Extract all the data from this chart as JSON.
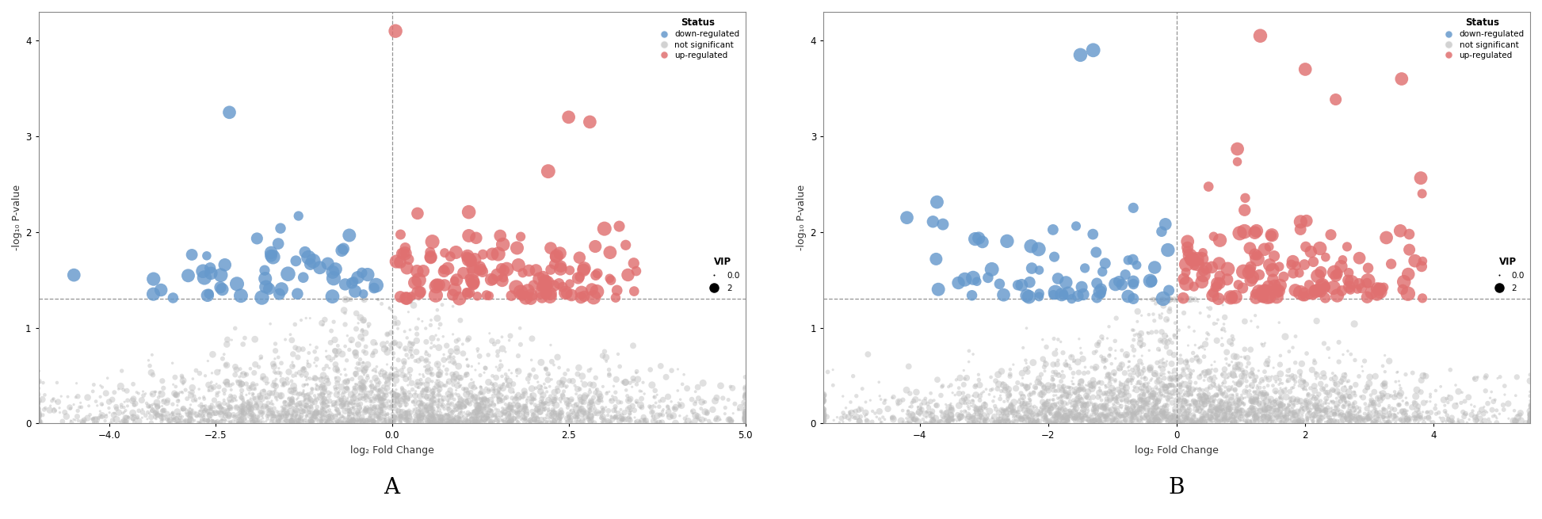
{
  "plot_A": {
    "xlim": [
      -5.0,
      5.0
    ],
    "ylim": [
      0,
      4.3
    ],
    "xticks": [
      -4.0,
      -2.5,
      0.0,
      2.5,
      5.0
    ],
    "yticks": [
      0,
      1,
      2,
      3,
      4
    ],
    "xlabel": "log₂ Fold Change",
    "ylabel": "-log₁₀ P-value",
    "hline": 1.3,
    "vline": 0.0,
    "title": "A"
  },
  "plot_B": {
    "xlim": [
      -5.5,
      5.5
    ],
    "ylim": [
      0,
      4.3
    ],
    "xticks": [
      -4,
      -2,
      0,
      2,
      4
    ],
    "yticks": [
      0,
      1,
      2,
      3,
      4
    ],
    "xlabel": "log₂ Fold Change",
    "ylabel": "-log₁₀ P-value",
    "hline": 1.3,
    "vline": 0.0,
    "title": "B"
  },
  "colors": {
    "up": "#E07070",
    "down": "#6699CC",
    "ns": "#BBBBBB"
  }
}
